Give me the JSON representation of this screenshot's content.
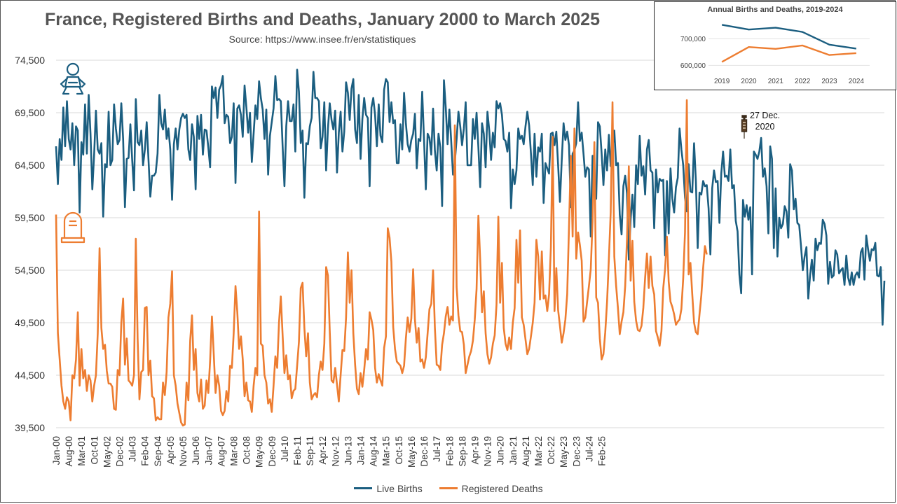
{
  "title": "France, Registered Births and Deaths, January 2000 to March 2025",
  "subtitle": "Source: https://www.insee.fr/en/statistiques",
  "annotation": {
    "line1": "27 Dec.",
    "line2": "2020",
    "icon": "syringe-icon"
  },
  "icons": {
    "births": "baby-icon",
    "deaths": "gravestone-icon"
  },
  "colors": {
    "births": "#1b5e80",
    "deaths": "#ed7d31",
    "grid": "#d9d9d9",
    "text": "#444444"
  },
  "chart_data": [
    {
      "type": "line",
      "title": "France, Registered Births and Deaths, January 2000 to March 2025",
      "start": "2000-01",
      "ylim": [
        39500,
        74500
      ],
      "yticks": [
        "39,500",
        "44,500",
        "49,500",
        "54,500",
        "59,500",
        "64,500",
        "69,500",
        "74,500"
      ],
      "ytick_values": [
        39500,
        44500,
        49500,
        54500,
        59500,
        64500,
        69500,
        74500
      ],
      "xtick_labels": [
        "Jan-00",
        "Aug-00",
        "Mar-01",
        "Oct-01",
        "May-02",
        "Dec-02",
        "Jul-03",
        "Feb-04",
        "Sep-04",
        "Apr-05",
        "Nov-05",
        "Jun-06",
        "Jan-07",
        "Aug-07",
        "Mar-08",
        "Oct-08",
        "May-09",
        "Dec-09",
        "Jul-10",
        "Feb-11",
        "Sep-11",
        "Apr-12",
        "Nov-12",
        "Jun-13",
        "Jan-14",
        "Aug-14",
        "Mar-15",
        "Oct-15",
        "May-16",
        "Dec-16",
        "Jul-17",
        "Feb-18",
        "Sep-18",
        "Apr-19",
        "Nov-19",
        "Jun-20",
        "Jan-21",
        "Aug-21",
        "Mar-22",
        "Oct-22",
        "May-23",
        "Dec-23",
        "Jul-24",
        "Feb-25"
      ],
      "grid": true,
      "legend": "bottom",
      "series": [
        {
          "name": "Live Births",
          "values": [
            66300,
            62700,
            67000,
            65000,
            70000,
            66300,
            70600,
            67000,
            66000,
            68500,
            64500,
            68200,
            67800,
            60000,
            66700,
            65500,
            70300,
            65600,
            71200,
            67500,
            62200,
            65500,
            69700,
            66000,
            65600,
            66600,
            59600,
            64600,
            64300,
            69600,
            64500,
            65000,
            70300,
            68000,
            66500,
            66900,
            70400,
            67000,
            60500,
            65100,
            65200,
            68400,
            65000,
            62100,
            70800,
            66700,
            66400,
            67800,
            64500,
            66000,
            68600,
            65000,
            61500,
            63500,
            63500,
            63800,
            65600,
            71200,
            68500,
            67900,
            69800,
            67000,
            68000,
            66000,
            61200,
            66500,
            68000,
            66000,
            67900,
            69000,
            69400,
            69000,
            69300,
            66000,
            65000,
            68400,
            67200,
            62200,
            69200,
            67000,
            69300,
            65500,
            67900,
            67800,
            66200,
            64300,
            72000,
            70900,
            71900,
            69000,
            71700,
            72100,
            73000,
            68500,
            69300,
            69100,
            66600,
            67200,
            70400,
            62800,
            69900,
            70200,
            69300,
            67200,
            72100,
            70000,
            67600,
            69500,
            64800,
            67500,
            70200,
            68900,
            72500,
            70900,
            69800,
            67000,
            69800,
            63600,
            67300,
            68600,
            69900,
            73000,
            70700,
            70800,
            70600,
            66300,
            62500,
            68200,
            70600,
            68700,
            68700,
            70300,
            65800,
            73600,
            71500,
            66600,
            67800,
            61400,
            66600,
            66500,
            68200,
            69000,
            73400,
            70900,
            70900,
            70600,
            66100,
            67200,
            70500,
            64000,
            68000,
            70400,
            68800,
            67900,
            69700,
            63800,
            67600,
            69600,
            65800,
            67700,
            72400,
            71400,
            68800,
            71800,
            72700,
            67900,
            66600,
            71200,
            65100,
            68900,
            70900,
            69300,
            69000,
            62500,
            70000,
            70900,
            69300,
            66300,
            70300,
            67300,
            66700,
            71700,
            72700,
            72400,
            68600,
            70500,
            68500,
            68800,
            64700,
            64700,
            68400,
            66000,
            71400,
            68500,
            66500,
            65800,
            66900,
            67500,
            69400,
            64200,
            67000,
            66800,
            71500,
            67000,
            62200,
            67500,
            67100,
            65500,
            69900,
            65900,
            64000,
            67500,
            66200,
            60600,
            72600,
            70000,
            66500,
            69800,
            66800,
            63600,
            64800,
            67000,
            69600,
            68200,
            66400,
            68000,
            70500,
            64500,
            64500,
            64500,
            68900,
            67000,
            69500,
            66200,
            62400,
            68500,
            67500,
            64300,
            69600,
            67800,
            65000,
            67600,
            66200,
            70600,
            69900,
            70400,
            69300,
            67000,
            66800,
            65800,
            67600,
            60400,
            64100,
            62700,
            64000,
            68000,
            67000,
            67300,
            66500,
            68200,
            69600,
            68300,
            65600,
            62600,
            67500,
            63400,
            66200,
            65800,
            67500,
            60900,
            64700,
            64200,
            63700,
            67500,
            67600,
            66400,
            67700,
            64500,
            61000,
            65000,
            68500,
            66900,
            67700,
            66400,
            60500,
            65600,
            65900,
            66600,
            70500,
            66800,
            67600,
            65600,
            63400,
            64300,
            64100,
            57700,
            65400,
            61800,
            61300,
            68600,
            68200,
            65600,
            62600,
            66000,
            64000,
            67400,
            64400,
            66200,
            67800,
            64500,
            64700,
            59800,
            57900,
            62500,
            63500,
            61800,
            55500,
            59400,
            61700,
            58600,
            64500,
            62700,
            67300,
            63500,
            64400,
            61700,
            66000,
            66900,
            64000,
            63800,
            58500,
            64100,
            61900,
            63200,
            63000,
            63100,
            55900,
            63000,
            58000,
            64200,
            61300,
            60000,
            62400,
            63300,
            68000,
            66000,
            64500,
            61400,
            60100,
            64600,
            62000,
            61900,
            66600,
            63000,
            56600,
            61900,
            61700,
            63000,
            62500,
            62600,
            60400,
            56000,
            62300,
            64000,
            62900,
            63000,
            59000,
            63700,
            65800,
            63400,
            63500,
            63000,
            66000,
            62300,
            62600,
            59200,
            58200,
            54100,
            52300,
            61200,
            59600,
            60700,
            59300,
            60500,
            54100,
            65800,
            65500,
            65100,
            65800,
            67100,
            63400,
            64200,
            62500,
            58000,
            66300,
            65100,
            56600,
            62300,
            55800,
            59500,
            58500,
            58900,
            60600,
            60100,
            57600,
            64600,
            64000,
            60300,
            61300,
            59000,
            58800,
            56800,
            54500,
            55800,
            56700,
            51800,
            54000,
            55500,
            53500,
            57500,
            56400,
            57100,
            57000,
            59300,
            58900,
            57800,
            53200,
            55300,
            53800,
            54000,
            56400,
            56000,
            54200,
            54500,
            54700,
            53100,
            55900,
            53800,
            53100,
            54300,
            53100,
            54000,
            54300,
            53800,
            56200,
            56600,
            53600,
            57800,
            56500,
            55400,
            56500,
            56400,
            57100,
            54000,
            53900,
            54800,
            49300,
            53500
          ]
        },
        {
          "name": "Registered Deaths",
          "values": [
            59800,
            48500,
            46000,
            43500,
            42000,
            41300,
            42400,
            42000,
            40200,
            44500,
            44200,
            46000,
            50500,
            43500,
            47000,
            44200,
            45000,
            43000,
            44500,
            44000,
            42000,
            43500,
            44500,
            48500,
            56600,
            49000,
            47000,
            47400,
            44900,
            43700,
            43700,
            43400,
            41300,
            41200,
            45000,
            44500,
            49500,
            51800,
            45500,
            48000,
            44000,
            43800,
            43500,
            44500,
            57500,
            48000,
            42200,
            44800,
            45000,
            50900,
            51000,
            44500,
            45900,
            42500,
            42300,
            40200,
            40500,
            40300,
            40300,
            43800,
            42600,
            44800,
            50000,
            51300,
            54400,
            44500,
            43500,
            41800,
            40900,
            40000,
            39700,
            39800,
            43800,
            42100,
            47800,
            50200,
            45000,
            47000,
            42800,
            42000,
            44100,
            41300,
            41600,
            44000,
            42800,
            45900,
            50100,
            46500,
            42800,
            44500,
            43500,
            41100,
            40700,
            41100,
            43000,
            42000,
            45400,
            45200,
            48500,
            53000,
            50500,
            47000,
            48200,
            46000,
            42500,
            43800,
            42100,
            42000,
            41000,
            43500,
            45200,
            44500,
            60100,
            47500,
            47300,
            44500,
            43800,
            41800,
            42200,
            41000,
            43500,
            46300,
            45200,
            49500,
            52000,
            48300,
            44700,
            46400,
            44100,
            44500,
            42300,
            43000,
            43200,
            45400,
            47700,
            52800,
            53300,
            49000,
            46300,
            48500,
            43800,
            42200,
            42600,
            42800,
            42400,
            44500,
            45800,
            45000,
            47500,
            54800,
            54000,
            48700,
            44000,
            43800,
            45200,
            43600,
            42000,
            44500,
            46900,
            46800,
            50000,
            56200,
            51400,
            54500,
            48500,
            45500,
            43200,
            42700,
            44700,
            43400,
            45000,
            47000,
            46000,
            50500,
            49800,
            48800,
            45200,
            43800,
            44600,
            44000,
            43500,
            47100,
            48200,
            58500,
            57600,
            55300,
            49100,
            47000,
            45800,
            45600,
            45400,
            44700,
            45400,
            48000,
            50000,
            48600,
            49900,
            54600,
            49800,
            47600,
            49000,
            45800,
            46000,
            45200,
            46200,
            48500,
            50800,
            51300,
            54500,
            49000,
            45500,
            45400,
            45000,
            47400,
            48500,
            50100,
            51000,
            49300,
            50100,
            49700,
            68300,
            52900,
            50200,
            48700,
            48600,
            47400,
            44700,
            45500,
            46300,
            46800,
            47800,
            49800,
            52700,
            59700,
            55500,
            50500,
            52500,
            48500,
            46500,
            45600,
            46200,
            47500,
            48300,
            51200,
            59600,
            51400,
            55200,
            49000,
            47500,
            46900,
            48100,
            47000,
            49500,
            50900,
            57400,
            53300,
            58300,
            50000,
            49300,
            47900,
            46500,
            47000,
            48200,
            49500,
            51400,
            57400,
            55800,
            51700,
            56300,
            51800,
            52100,
            50600,
            52200,
            56700,
            67200,
            50600,
            54700,
            50700,
            49200,
            47600,
            48500,
            49800,
            52200,
            58600,
            65400,
            57700,
            68000,
            55600,
            58100,
            56900,
            55400,
            49600,
            50000,
            51500,
            53000,
            54600,
            59200,
            66700,
            51900,
            51400,
            48000,
            46000,
            46500,
            48600,
            51500,
            55600,
            60000,
            70500,
            55800,
            53000,
            50900,
            48400,
            49600,
            50500,
            53000,
            57500,
            64400,
            53500,
            57300,
            51500,
            49700,
            48800,
            48700,
            49200,
            50900,
            53800,
            56100,
            52800,
            55800,
            53000,
            52200,
            48700,
            48100,
            47300,
            48700,
            52800,
            54600,
            57700,
            53400,
            51500,
            51000,
            50300,
            49300,
            49600,
            49800,
            50800,
            53700,
            58100,
            70700,
            54100,
            55200,
            52200,
            49500,
            48600,
            48400,
            50300,
            52100,
            54700,
            56800,
            56000
          ]
        }
      ]
    },
    {
      "type": "line",
      "title": "Annual Births and Deaths, 2019-2024",
      "categories": [
        "2019",
        "2020",
        "2021",
        "2022",
        "2023",
        "2024"
      ],
      "ylim": [
        585000,
        770000
      ],
      "yticks": [
        "600,000",
        "700,000"
      ],
      "ytick_values": [
        600000,
        700000
      ],
      "series": [
        {
          "name": "Live Births",
          "values": [
            753000,
            735000,
            742000,
            726000,
            678000,
            663000
          ]
        },
        {
          "name": "Registered Deaths",
          "values": [
            613000,
            669000,
            662000,
            675000,
            639000,
            646000
          ]
        }
      ]
    }
  ]
}
